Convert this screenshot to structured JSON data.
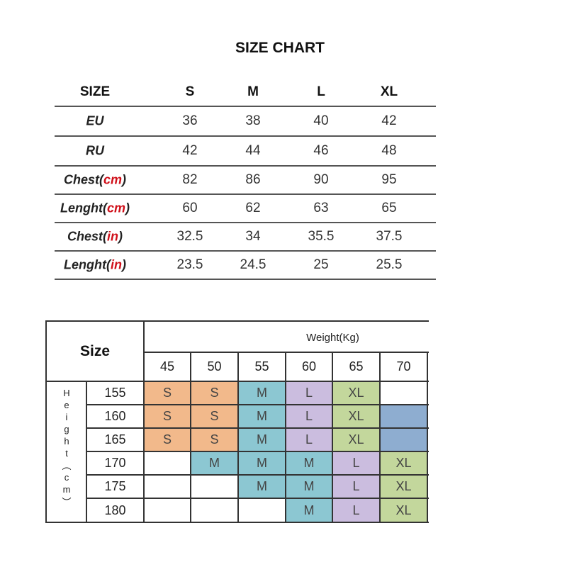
{
  "title": "SIZE CHART",
  "table1": {
    "header_label": "SIZE",
    "sizes": [
      "S",
      "M",
      "L",
      "XL"
    ],
    "rows": [
      {
        "label": "EU",
        "unit": "",
        "values": [
          "36",
          "38",
          "40",
          "42"
        ]
      },
      {
        "label": "RU",
        "unit": "",
        "values": [
          "42",
          "44",
          "46",
          "48"
        ]
      },
      {
        "label": "Chest(",
        "unit": "cm",
        "close": ")",
        "values": [
          "82",
          "86",
          "90",
          "95"
        ]
      },
      {
        "label": "Lenght(",
        "unit": "cm",
        "close": ")",
        "values": [
          "60",
          "62",
          "63",
          "65"
        ]
      },
      {
        "label": "Chest(",
        "unit": "in",
        "close": ")",
        "values": [
          "32.5",
          "34",
          "35.5",
          "37.5"
        ]
      },
      {
        "label": "Lenght(",
        "unit": "in",
        "close": ")",
        "values": [
          "23.5",
          "24.5",
          "25",
          "25.5"
        ]
      }
    ],
    "unit_color": "#d0101a"
  },
  "table2": {
    "corner_label": "Size",
    "weight_label": "Weight(Kg)",
    "height_label": [
      "H",
      "e",
      "i",
      "g",
      "h",
      "t",
      "︵",
      "c",
      "m",
      "︶"
    ],
    "weights": [
      "45",
      "50",
      "55",
      "60",
      "65",
      "70"
    ],
    "heights": [
      "155",
      "160",
      "165",
      "170",
      "175",
      "180"
    ],
    "colors": {
      "S": "#f2b98b",
      "M": "#8cc7d2",
      "L": "#cbbddf",
      "XL": "#c3d79c",
      "blank_blue": "#8eadd0",
      "empty": "#ffffff"
    },
    "grid": [
      [
        {
          "v": "S",
          "c": "S"
        },
        {
          "v": "S",
          "c": "S"
        },
        {
          "v": "M",
          "c": "M"
        },
        {
          "v": "L",
          "c": "L"
        },
        {
          "v": "XL",
          "c": "XL"
        },
        {
          "v": "",
          "c": "empty"
        }
      ],
      [
        {
          "v": "S",
          "c": "S"
        },
        {
          "v": "S",
          "c": "S"
        },
        {
          "v": "M",
          "c": "M"
        },
        {
          "v": "L",
          "c": "L"
        },
        {
          "v": "XL",
          "c": "XL"
        },
        {
          "v": "",
          "c": "blank_blue"
        }
      ],
      [
        {
          "v": "S",
          "c": "S"
        },
        {
          "v": "S",
          "c": "S"
        },
        {
          "v": "M",
          "c": "M"
        },
        {
          "v": "L",
          "c": "L"
        },
        {
          "v": "XL",
          "c": "XL"
        },
        {
          "v": "",
          "c": "blank_blue"
        }
      ],
      [
        {
          "v": "",
          "c": "empty"
        },
        {
          "v": "M",
          "c": "M"
        },
        {
          "v": "M",
          "c": "M"
        },
        {
          "v": "M",
          "c": "M"
        },
        {
          "v": "L",
          "c": "L"
        },
        {
          "v": "XL",
          "c": "XL"
        }
      ],
      [
        {
          "v": "",
          "c": "empty"
        },
        {
          "v": "",
          "c": "empty"
        },
        {
          "v": "M",
          "c": "M"
        },
        {
          "v": "M",
          "c": "M"
        },
        {
          "v": "L",
          "c": "L"
        },
        {
          "v": "XL",
          "c": "XL"
        }
      ],
      [
        {
          "v": "",
          "c": "empty"
        },
        {
          "v": "",
          "c": "empty"
        },
        {
          "v": "",
          "c": "empty"
        },
        {
          "v": "M",
          "c": "M"
        },
        {
          "v": "L",
          "c": "L"
        },
        {
          "v": "XL",
          "c": "XL"
        }
      ]
    ]
  }
}
